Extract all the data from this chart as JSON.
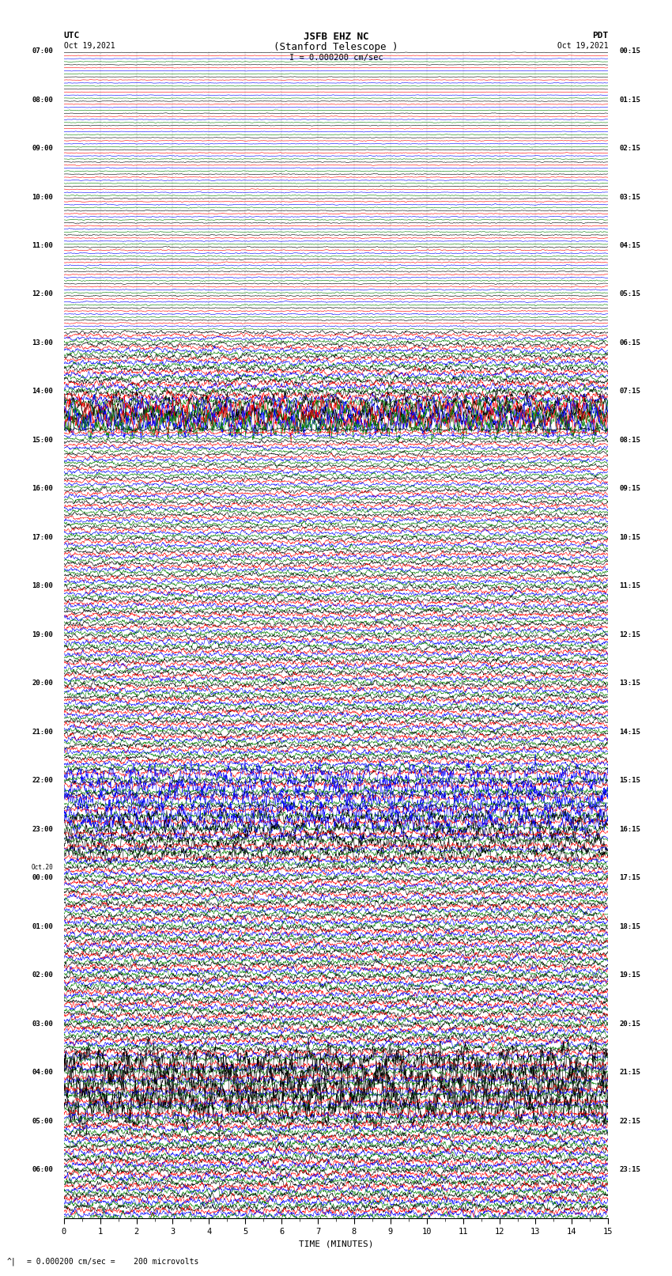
{
  "title_line1": "JSFB EHZ NC",
  "title_line2": "(Stanford Telescope )",
  "title_line3": "I = 0.000200 cm/sec",
  "label_utc": "UTC",
  "label_pdt": "PDT",
  "date_utc": "Oct 19,2021",
  "date_pdt": "Oct 19,2021",
  "xlabel": "TIME (MINUTES)",
  "footer_a": "= 0.000200 cm/sec =    200 microvolts",
  "colors": [
    "black",
    "red",
    "blue",
    "green"
  ],
  "utc_labels": [
    "07:00",
    "08:00",
    "09:00",
    "10:00",
    "11:00",
    "12:00",
    "13:00",
    "14:00",
    "15:00",
    "16:00",
    "17:00",
    "18:00",
    "19:00",
    "20:00",
    "21:00",
    "22:00",
    "23:00",
    "00:00",
    "01:00",
    "02:00",
    "03:00",
    "04:00",
    "05:00",
    "06:00"
  ],
  "pdt_labels": [
    "00:15",
    "01:15",
    "02:15",
    "03:15",
    "04:15",
    "05:15",
    "06:15",
    "07:15",
    "08:15",
    "09:15",
    "10:15",
    "11:15",
    "12:15",
    "13:15",
    "14:15",
    "15:15",
    "16:15",
    "17:15",
    "18:15",
    "19:15",
    "20:15",
    "21:15",
    "22:15",
    "23:15"
  ],
  "num_hours": 24,
  "rows_per_hour": 4,
  "traces_per_row": 4,
  "fig_width": 8.5,
  "fig_height": 16.13,
  "bg_color": "white"
}
